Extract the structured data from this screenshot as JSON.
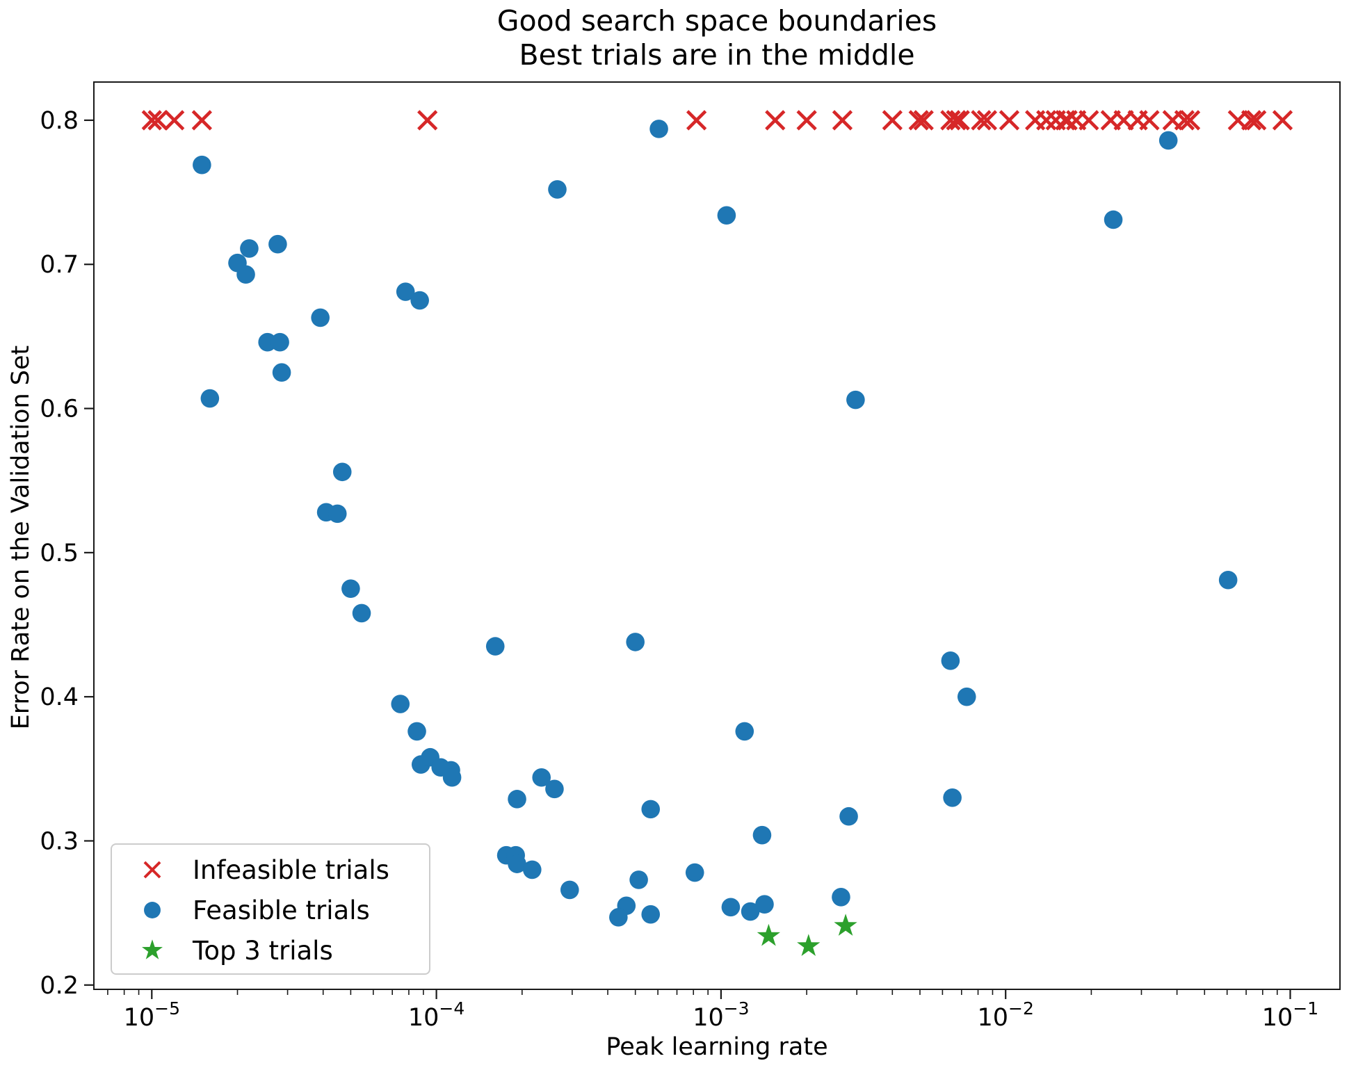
{
  "title": {
    "line1": "Good search space boundaries",
    "line2": "Best trials are in the middle"
  },
  "axes": {
    "x_scale": "log",
    "x_tick_exponents": [
      -5,
      -4,
      -3,
      -2,
      -1
    ],
    "y_ticks": [
      0.2,
      0.3,
      0.4,
      0.5,
      0.6,
      0.7,
      0.8
    ],
    "xlim_log10": [
      -5.2035,
      -0.8253
    ],
    "ylim": [
      0.197,
      0.8265
    ],
    "spine_color": "#1a1a1a",
    "grid": "off",
    "legend_position": "lower-left"
  },
  "chart_data": {
    "type": "scatter",
    "title": "Good search space boundaries\nBest trials are in the middle",
    "xlabel": "Peak learning rate",
    "ylabel": "Error Rate on the Validation Set",
    "xlim": [
      6.3e-06,
      0.15
    ],
    "ylim": [
      0.197,
      0.8265
    ],
    "series": [
      {
        "name": "Infeasible trials",
        "marker": "x",
        "color": "#d62728",
        "points": [
          [
            1e-05,
            0.8
          ],
          [
            1.05e-05,
            0.8
          ],
          [
            1.2e-05,
            0.8
          ],
          [
            1.5e-05,
            0.8
          ],
          [
            9.3e-05,
            0.8
          ],
          [
            0.00082,
            0.8
          ],
          [
            0.00155,
            0.8
          ],
          [
            0.002,
            0.8
          ],
          [
            0.00267,
            0.8
          ],
          [
            0.004,
            0.8
          ],
          [
            0.00495,
            0.8
          ],
          [
            0.00515,
            0.8
          ],
          [
            0.0064,
            0.8
          ],
          [
            0.0067,
            0.8
          ],
          [
            0.0069,
            0.8
          ],
          [
            0.0082,
            0.8
          ],
          [
            0.0086,
            0.8
          ],
          [
            0.0103,
            0.8
          ],
          [
            0.0127,
            0.8
          ],
          [
            0.0139,
            0.8
          ],
          [
            0.015,
            0.8
          ],
          [
            0.0162,
            0.8
          ],
          [
            0.0165,
            0.8
          ],
          [
            0.0177,
            0.8
          ],
          [
            0.0196,
            0.8
          ],
          [
            0.0234,
            0.8
          ],
          [
            0.026,
            0.8
          ],
          [
            0.0291,
            0.8
          ],
          [
            0.032,
            0.8
          ],
          [
            0.0386,
            0.8
          ],
          [
            0.0425,
            0.8
          ],
          [
            0.0445,
            0.8
          ],
          [
            0.0655,
            0.8
          ],
          [
            0.073,
            0.8
          ],
          [
            0.076,
            0.8
          ],
          [
            0.094,
            0.8
          ]
        ]
      },
      {
        "name": "Feasible trials",
        "marker": "dot",
        "color": "#1f77b4",
        "points": [
          [
            1.5e-05,
            0.769
          ],
          [
            1.6e-05,
            0.607
          ],
          [
            2e-05,
            0.701
          ],
          [
            2.14e-05,
            0.693
          ],
          [
            2.2e-05,
            0.711
          ],
          [
            2.77e-05,
            0.714
          ],
          [
            2.55e-05,
            0.646
          ],
          [
            2.82e-05,
            0.646
          ],
          [
            2.86e-05,
            0.625
          ],
          [
            3.91e-05,
            0.663
          ],
          [
            4.1e-05,
            0.528
          ],
          [
            4.49e-05,
            0.527
          ],
          [
            4.67e-05,
            0.556
          ],
          [
            5e-05,
            0.475
          ],
          [
            5.46e-05,
            0.458
          ],
          [
            7.79e-05,
            0.681
          ],
          [
            8.74e-05,
            0.675
          ],
          [
            7.47e-05,
            0.395
          ],
          [
            8.54e-05,
            0.376
          ],
          [
            8.82e-05,
            0.353
          ],
          [
            9.51e-05,
            0.358
          ],
          [
            0.0001035,
            0.351
          ],
          [
            0.0001125,
            0.349
          ],
          [
            0.0001135,
            0.344
          ],
          [
            0.000161,
            0.435
          ],
          [
            0.000192,
            0.329
          ],
          [
            0.000176,
            0.29
          ],
          [
            0.00019,
            0.29
          ],
          [
            0.000192,
            0.284
          ],
          [
            0.000217,
            0.28
          ],
          [
            0.000234,
            0.344
          ],
          [
            0.00026,
            0.336
          ],
          [
            0.000266,
            0.752
          ],
          [
            0.000294,
            0.266
          ],
          [
            0.0005,
            0.438
          ],
          [
            0.000465,
            0.255
          ],
          [
            0.000436,
            0.247
          ],
          [
            0.000514,
            0.273
          ],
          [
            0.000566,
            0.249
          ],
          [
            0.000566,
            0.322
          ],
          [
            0.000605,
            0.794
          ],
          [
            0.000809,
            0.278
          ],
          [
            0.001046,
            0.734
          ],
          [
            0.001082,
            0.254
          ],
          [
            0.00121,
            0.376
          ],
          [
            0.001268,
            0.251
          ],
          [
            0.001394,
            0.304
          ],
          [
            0.001422,
            0.256
          ],
          [
            0.00264,
            0.261
          ],
          [
            0.00281,
            0.317
          ],
          [
            0.00297,
            0.606
          ],
          [
            0.0064,
            0.425
          ],
          [
            0.0073,
            0.4
          ],
          [
            0.0065,
            0.33
          ],
          [
            0.0239,
            0.731
          ],
          [
            0.0373,
            0.786
          ],
          [
            0.0605,
            0.481
          ]
        ]
      },
      {
        "name": "Top 3 trials",
        "marker": "star",
        "color": "#2ca02c",
        "points": [
          [
            0.00147,
            0.234
          ],
          [
            0.00203,
            0.227
          ],
          [
            0.00274,
            0.241
          ]
        ]
      }
    ]
  },
  "legend": {
    "items": [
      {
        "label": "Infeasible trials",
        "marker": "x",
        "color": "#d62728"
      },
      {
        "label": "Feasible trials",
        "marker": "dot",
        "color": "#1f77b4"
      },
      {
        "label": "Top 3 trials",
        "marker": "star",
        "color": "#2ca02c"
      }
    ]
  }
}
